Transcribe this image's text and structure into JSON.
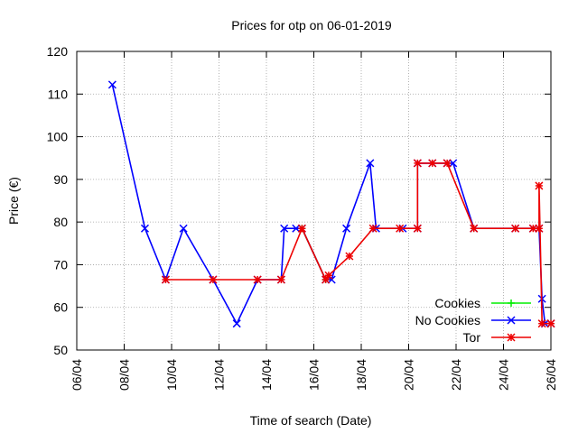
{
  "chart_data": {
    "type": "line",
    "title": "Prices for otp on 06-01-2019",
    "xlabel": "Time of search (Date)",
    "ylabel": "Price (€)",
    "x_ticks": [
      "06/04",
      "08/04",
      "10/04",
      "12/04",
      "14/04",
      "16/04",
      "18/04",
      "20/04",
      "22/04",
      "24/04",
      "26/04"
    ],
    "x_range": [
      "06/04",
      "26/04"
    ],
    "y_ticks": [
      50,
      60,
      70,
      80,
      90,
      100,
      110,
      120
    ],
    "ylim": [
      50,
      120
    ],
    "grid": true,
    "legend_position": "bottom-right",
    "series": [
      {
        "name": "Cookies",
        "color": "#00ee00",
        "marker": "plus",
        "points": [
          [
            "15/04 12:00",
            78.5
          ],
          [
            "16/04 12:00",
            66.5
          ]
        ]
      },
      {
        "name": "No Cookies",
        "color": "#0000ff",
        "marker": "x",
        "points": [
          [
            "07/04 12:00",
            112.2
          ],
          [
            "08/04 21:00",
            78.5
          ],
          [
            "09/04 18:00",
            66.5
          ],
          [
            "10/04 12:00",
            78.5
          ],
          [
            "11/04 18:00",
            66.5
          ],
          [
            "12/04 18:00",
            56.2
          ],
          [
            "13/04 15:00",
            66.5
          ],
          [
            "14/04 15:00",
            66.5
          ],
          [
            "14/04 18:00",
            78.5
          ],
          [
            "15/04 06:00",
            78.5
          ],
          [
            "15/04 12:00",
            78.5
          ],
          [
            "16/04 12:00",
            66.5
          ],
          [
            "16/04 18:00",
            66.5
          ],
          [
            "17/04 09:00",
            78.5
          ],
          [
            "18/04 09:00",
            93.8
          ],
          [
            "18/04 15:00",
            78.5
          ],
          [
            "19/04 18:00",
            78.5
          ],
          [
            "20/04 09:00",
            78.5
          ],
          [
            "20/04 09:00",
            93.8
          ],
          [
            "21/04 00:00",
            93.8
          ],
          [
            "21/04 15:00",
            93.8
          ],
          [
            "21/04 21:00",
            93.8
          ],
          [
            "22/04 18:00",
            78.5
          ],
          [
            "24/04 12:00",
            78.5
          ],
          [
            "25/04 06:00",
            78.5
          ],
          [
            "25/04 12:00",
            78.5
          ],
          [
            "25/04 15:00",
            62.0
          ],
          [
            "25/04 18:00",
            56.2
          ],
          [
            "26/04 00:00",
            56.2
          ]
        ]
      },
      {
        "name": "Tor",
        "color": "#ee0000",
        "marker": "star",
        "points": [
          [
            "09/04 18:00",
            66.5
          ],
          [
            "11/04 18:00",
            66.5
          ],
          [
            "13/04 15:00",
            66.5
          ],
          [
            "14/04 15:00",
            66.5
          ],
          [
            "15/04 12:00",
            78.5
          ],
          [
            "16/04 12:00",
            66.5
          ],
          [
            "16/04 15:00",
            67.5
          ],
          [
            "17/04 12:00",
            72.0
          ],
          [
            "18/04 12:00",
            78.5
          ],
          [
            "19/04 15:00",
            78.5
          ],
          [
            "20/04 09:00",
            78.5
          ],
          [
            "20/04 09:00",
            93.8
          ],
          [
            "21/04 00:00",
            93.8
          ],
          [
            "21/04 15:00",
            93.8
          ],
          [
            "22/04 18:00",
            78.5
          ],
          [
            "24/04 12:00",
            78.5
          ],
          [
            "25/04 06:00",
            78.5
          ],
          [
            "25/04 12:00",
            78.5
          ],
          [
            "25/04 12:00",
            88.5
          ],
          [
            "25/04 15:00",
            56.2
          ],
          [
            "26/04 00:00",
            56.2
          ]
        ]
      }
    ]
  }
}
